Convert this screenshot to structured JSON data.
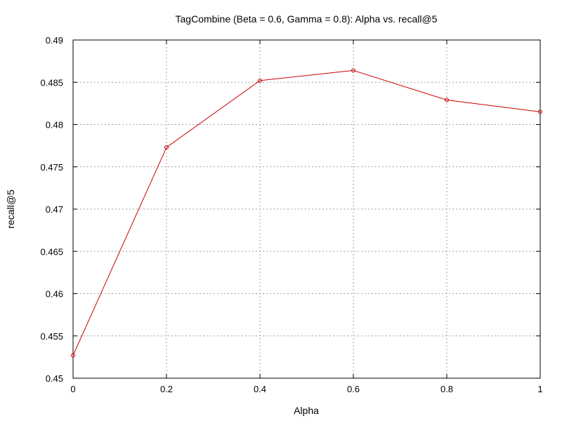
{
  "chart_data": {
    "type": "line",
    "title": "TagCombine (Beta = 0.6, Gamma = 0.8): Alpha vs. recall@5",
    "xlabel": "Alpha",
    "ylabel": "recall@5",
    "xlim": [
      0,
      1
    ],
    "ylim": [
      0.45,
      0.49
    ],
    "x_ticks": [
      "0",
      "0.2",
      "0.4",
      "0.6",
      "0.8",
      "1"
    ],
    "y_ticks": [
      "0.45",
      "0.455",
      "0.46",
      "0.465",
      "0.47",
      "0.475",
      "0.48",
      "0.485",
      "0.49"
    ],
    "grid": true,
    "legend": "none",
    "series": [
      {
        "color": "#cc0000",
        "marker": "circle",
        "x": [
          0,
          0.2,
          0.4,
          0.6,
          0.8,
          1.0
        ],
        "y": [
          0.4527,
          0.4773,
          0.4852,
          0.4864,
          0.4829,
          0.4815
        ]
      }
    ]
  }
}
